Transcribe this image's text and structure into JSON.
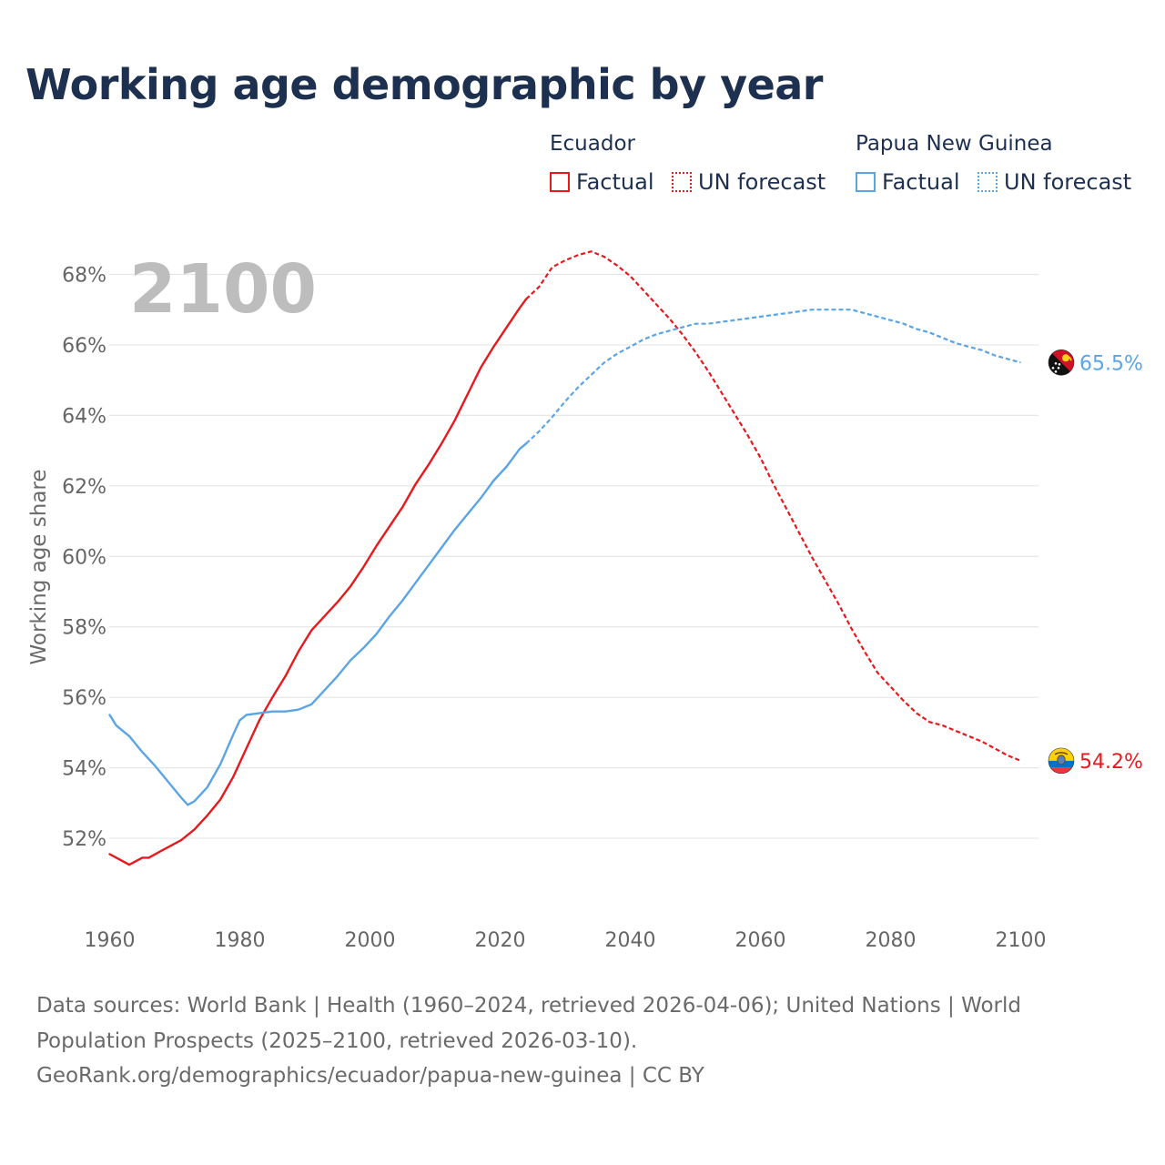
{
  "title": "Working age demographic by year",
  "legend": {
    "groups": [
      {
        "name": "Ecuador",
        "factual": "Factual",
        "forecast": "UN forecast",
        "color": "#e8191c"
      },
      {
        "name": "Papua New Guinea",
        "factual": "Factual",
        "forecast": "UN forecast",
        "color": "#5ba4e5"
      }
    ]
  },
  "source": {
    "line1": "Data sources: World Bank | Health (1960–2024, retrieved 2026-04-06); United Nations | World",
    "line2": "Population Prospects (2025–2100, retrieved 2026-03-10).",
    "line3": "GeoRank.org/demographics/ecuador/papua-new-guinea | CC BY"
  },
  "chart_data": {
    "type": "line",
    "title": "Working age demographic by year",
    "year_label": "2100",
    "xlabel": "",
    "ylabel": "Working age share",
    "xlim": [
      1960,
      2103
    ],
    "ylim": [
      49.6,
      69.2
    ],
    "x_ticks": [
      1960,
      1980,
      2000,
      2020,
      2040,
      2060,
      2080,
      2100
    ],
    "y_ticks": [
      52,
      54,
      56,
      58,
      60,
      62,
      64,
      66,
      68
    ],
    "y_tick_labels": [
      "52%",
      "54%",
      "56%",
      "58%",
      "60%",
      "62%",
      "64%",
      "66%",
      "68%"
    ],
    "factual_end_year": 2024,
    "series": [
      {
        "name": "Ecuador",
        "color": "#e8191c",
        "end_label": "54.2%",
        "flag": "ecuador-flag-icon",
        "points": [
          [
            1960,
            51.55
          ],
          [
            1963,
            51.25
          ],
          [
            1965,
            51.45
          ],
          [
            1966,
            51.45
          ],
          [
            1968,
            51.65
          ],
          [
            1971,
            51.95
          ],
          [
            1973,
            52.25
          ],
          [
            1975,
            52.65
          ],
          [
            1977,
            53.1
          ],
          [
            1979,
            53.75
          ],
          [
            1981,
            54.55
          ],
          [
            1983,
            55.35
          ],
          [
            1985,
            56.0
          ],
          [
            1987,
            56.6
          ],
          [
            1989,
            57.3
          ],
          [
            1991,
            57.9
          ],
          [
            1993,
            58.3
          ],
          [
            1995,
            58.7
          ],
          [
            1997,
            59.15
          ],
          [
            1999,
            59.7
          ],
          [
            2001,
            60.3
          ],
          [
            2003,
            60.85
          ],
          [
            2005,
            61.4
          ],
          [
            2007,
            62.05
          ],
          [
            2009,
            62.6
          ],
          [
            2011,
            63.2
          ],
          [
            2013,
            63.85
          ],
          [
            2015,
            64.6
          ],
          [
            2017,
            65.35
          ],
          [
            2019,
            65.95
          ],
          [
            2021,
            66.5
          ],
          [
            2023,
            67.05
          ],
          [
            2024,
            67.3
          ],
          [
            2026,
            67.65
          ],
          [
            2028,
            68.2
          ],
          [
            2030,
            68.4
          ],
          [
            2032,
            68.55
          ],
          [
            2034,
            68.65
          ],
          [
            2036,
            68.5
          ],
          [
            2038,
            68.25
          ],
          [
            2040,
            67.95
          ],
          [
            2042,
            67.55
          ],
          [
            2044,
            67.15
          ],
          [
            2046,
            66.75
          ],
          [
            2048,
            66.3
          ],
          [
            2050,
            65.8
          ],
          [
            2052,
            65.25
          ],
          [
            2054,
            64.65
          ],
          [
            2056,
            64.05
          ],
          [
            2058,
            63.45
          ],
          [
            2060,
            62.8
          ],
          [
            2062,
            62.05
          ],
          [
            2064,
            61.35
          ],
          [
            2066,
            60.65
          ],
          [
            2068,
            59.95
          ],
          [
            2070,
            59.3
          ],
          [
            2072,
            58.65
          ],
          [
            2074,
            57.95
          ],
          [
            2076,
            57.3
          ],
          [
            2078,
            56.7
          ],
          [
            2080,
            56.3
          ],
          [
            2082,
            55.9
          ],
          [
            2084,
            55.55
          ],
          [
            2086,
            55.3
          ],
          [
            2088,
            55.2
          ],
          [
            2090,
            55.05
          ],
          [
            2092,
            54.9
          ],
          [
            2094,
            54.75
          ],
          [
            2096,
            54.55
          ],
          [
            2098,
            54.35
          ],
          [
            2100,
            54.2
          ]
        ]
      },
      {
        "name": "Papua New Guinea",
        "color": "#5ba4e5",
        "end_label": "65.5%",
        "flag": "papua-new-guinea-flag-icon",
        "points": [
          [
            1960,
            55.5
          ],
          [
            1961,
            55.2
          ],
          [
            1963,
            54.9
          ],
          [
            1965,
            54.45
          ],
          [
            1967,
            54.05
          ],
          [
            1969,
            53.6
          ],
          [
            1971,
            53.15
          ],
          [
            1972,
            52.95
          ],
          [
            1973,
            53.05
          ],
          [
            1975,
            53.45
          ],
          [
            1977,
            54.1
          ],
          [
            1979,
            54.95
          ],
          [
            1980,
            55.35
          ],
          [
            1981,
            55.5
          ],
          [
            1983,
            55.55
          ],
          [
            1985,
            55.6
          ],
          [
            1987,
            55.6
          ],
          [
            1989,
            55.65
          ],
          [
            1991,
            55.8
          ],
          [
            1993,
            56.2
          ],
          [
            1995,
            56.6
          ],
          [
            1997,
            57.05
          ],
          [
            1999,
            57.4
          ],
          [
            2001,
            57.8
          ],
          [
            2003,
            58.3
          ],
          [
            2005,
            58.75
          ],
          [
            2007,
            59.25
          ],
          [
            2009,
            59.75
          ],
          [
            2011,
            60.25
          ],
          [
            2013,
            60.75
          ],
          [
            2015,
            61.2
          ],
          [
            2017,
            61.65
          ],
          [
            2019,
            62.15
          ],
          [
            2021,
            62.55
          ],
          [
            2023,
            63.05
          ],
          [
            2024,
            63.2
          ],
          [
            2026,
            63.55
          ],
          [
            2028,
            63.95
          ],
          [
            2030,
            64.4
          ],
          [
            2032,
            64.8
          ],
          [
            2034,
            65.15
          ],
          [
            2036,
            65.5
          ],
          [
            2038,
            65.75
          ],
          [
            2040,
            65.95
          ],
          [
            2042,
            66.15
          ],
          [
            2044,
            66.3
          ],
          [
            2046,
            66.4
          ],
          [
            2048,
            66.5
          ],
          [
            2050,
            66.6
          ],
          [
            2052,
            66.6
          ],
          [
            2054,
            66.65
          ],
          [
            2056,
            66.7
          ],
          [
            2058,
            66.75
          ],
          [
            2060,
            66.8
          ],
          [
            2062,
            66.85
          ],
          [
            2064,
            66.9
          ],
          [
            2066,
            66.95
          ],
          [
            2068,
            67.0
          ],
          [
            2070,
            67.0
          ],
          [
            2072,
            67.0
          ],
          [
            2074,
            67.0
          ],
          [
            2076,
            66.9
          ],
          [
            2078,
            66.8
          ],
          [
            2080,
            66.7
          ],
          [
            2082,
            66.6
          ],
          [
            2084,
            66.45
          ],
          [
            2086,
            66.35
          ],
          [
            2088,
            66.2
          ],
          [
            2090,
            66.05
          ],
          [
            2092,
            65.95
          ],
          [
            2094,
            65.85
          ],
          [
            2096,
            65.7
          ],
          [
            2098,
            65.6
          ],
          [
            2100,
            65.5
          ]
        ]
      }
    ]
  }
}
